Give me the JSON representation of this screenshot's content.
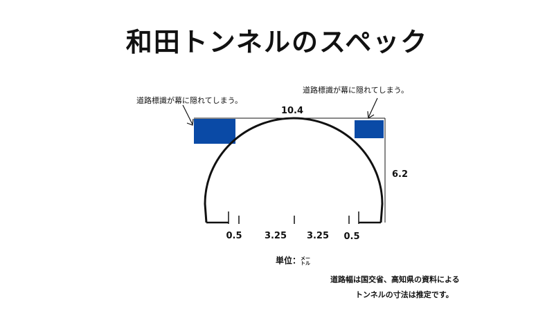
{
  "title": "和田トンネルのスペック",
  "annotations": {
    "sign_hidden_left": "道路標識が幕に隠れてしまう。",
    "sign_hidden_right": "道路標識が幕に隠れてしまう。"
  },
  "dimensions": {
    "width": "10.4",
    "height": "6.2",
    "shoulder_left": "0.5",
    "lane_left": "3.25",
    "lane_right": "3.25",
    "shoulder_right": "0.5"
  },
  "unit": {
    "label": "単位：",
    "value_top": "メー",
    "value_bottom": "トル"
  },
  "source_note": {
    "line1": "道路幅は国交省、高知県の資料による",
    "line2": "トンネルの寸法は推定です。"
  },
  "colors": {
    "sign_blue": "#0a4aa6",
    "line": "#111111"
  }
}
